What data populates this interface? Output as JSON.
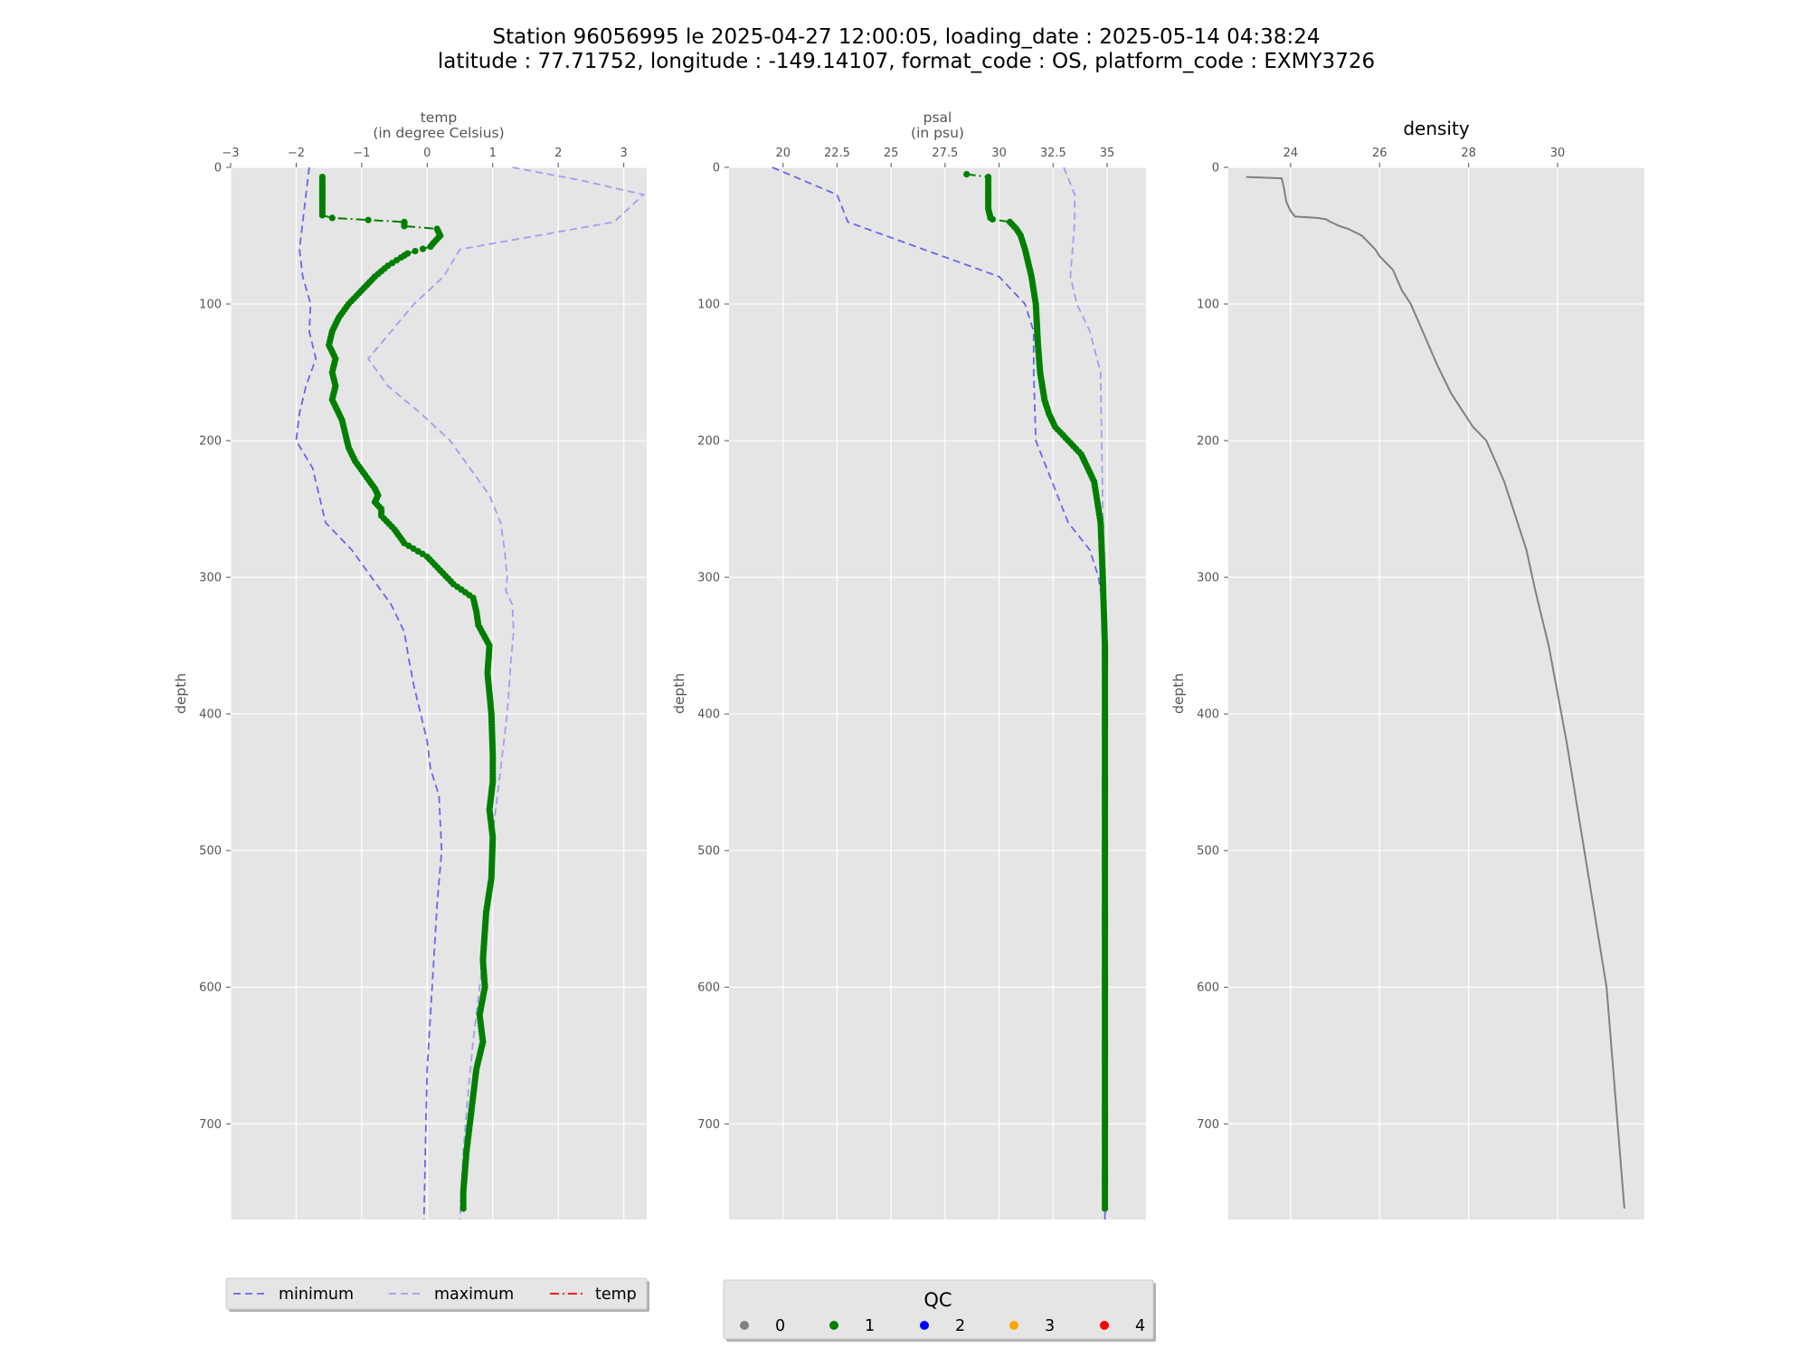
{
  "title_line1": "Station 96056995 le 2025-04-27 12:00:05, loading_date : 2025-05-14 04:38:24",
  "title_line2": "latitude : 77.71752, longitude : -149.14107, format_code : OS, platform_code : EXMY3726",
  "colors": {
    "axes_bg": "#e5e5e5",
    "grid": "#ffffff",
    "min_line": "#6666ee",
    "max_line": "#9f9fee",
    "profile": "#007f00",
    "density_line": "#808080",
    "temp_legend": "#ff0000"
  },
  "chart_data": [
    {
      "type": "line",
      "title": "temp",
      "subtitle": "(in degree Celsius)",
      "ylabel": "depth",
      "xlim": [
        -3,
        3.35
      ],
      "ylim": [
        770,
        0
      ],
      "xticks": [
        -3,
        -2,
        -1,
        0,
        1,
        2,
        3
      ],
      "yticks": [
        0,
        100,
        200,
        300,
        400,
        500,
        600,
        700
      ],
      "grid": true,
      "series": [
        {
          "name": "minimum",
          "style": "dashed",
          "x": [
            -1.8,
            -1.85,
            -1.9,
            -1.95,
            -1.9,
            -1.78,
            -1.8,
            -1.7,
            -1.85,
            -1.95,
            -2.0,
            -1.75,
            -1.55,
            -1.15,
            -0.85,
            -0.55,
            -0.35,
            -0.28,
            -0.2,
            -0.1,
            0.0,
            0.05,
            0.18,
            0.2,
            0.22,
            0.15,
            0.1,
            0.05,
            0.0,
            -0.02,
            -0.05
          ],
          "y": [
            0,
            20,
            40,
            60,
            80,
            100,
            120,
            140,
            160,
            180,
            200,
            220,
            260,
            280,
            300,
            320,
            340,
            360,
            380,
            400,
            420,
            440,
            460,
            480,
            500,
            540,
            580,
            620,
            660,
            700,
            770
          ]
        },
        {
          "name": "maximum",
          "style": "dashed",
          "x": [
            1.3,
            2.4,
            3.3,
            2.85,
            0.5,
            0.25,
            -0.2,
            -0.9,
            -0.6,
            -0.1,
            0.35,
            0.65,
            0.95,
            1.12,
            1.18,
            1.22,
            1.2,
            1.3,
            1.32,
            1.28,
            1.22,
            1.12,
            1.02,
            0.98,
            0.95,
            0.9,
            0.8,
            0.7,
            0.62,
            0.55,
            0.5
          ],
          "y": [
            0,
            10,
            20,
            40,
            60,
            80,
            100,
            140,
            160,
            180,
            200,
            220,
            240,
            260,
            280,
            300,
            310,
            320,
            340,
            360,
            400,
            440,
            480,
            500,
            520,
            560,
            600,
            640,
            680,
            720,
            770
          ]
        },
        {
          "name": "temp",
          "qc": 1,
          "style": "dashdot-markers",
          "x": [
            -1.6,
            -1.6,
            -1.6,
            -1.6,
            -1.45,
            -0.35,
            -0.35,
            0.15,
            0.2,
            0.1,
            0.05,
            -0.3,
            -0.4,
            -0.6,
            -0.8,
            -1.0,
            -1.2,
            -1.35,
            -1.45,
            -1.5,
            -1.4,
            -1.45,
            -1.4,
            -1.45,
            -1.3,
            -1.25,
            -1.2,
            -1.1,
            -0.95,
            -0.8,
            -0.75,
            -0.8,
            -0.7,
            -0.7,
            -0.5,
            -0.35,
            0.0,
            0.2,
            0.4,
            0.7,
            0.75,
            0.78,
            0.95,
            0.92,
            0.98,
            1.0,
            1.0,
            0.95,
            1.0,
            0.98,
            0.9,
            0.85,
            0.88,
            0.8,
            0.85,
            0.75,
            0.7,
            0.65,
            0.6,
            0.55,
            0.55
          ],
          "y": [
            7,
            15,
            25,
            35,
            37,
            40,
            43,
            45,
            50,
            55,
            58,
            63,
            66,
            72,
            80,
            90,
            100,
            110,
            120,
            130,
            140,
            150,
            160,
            170,
            185,
            195,
            205,
            215,
            225,
            235,
            240,
            245,
            250,
            255,
            265,
            275,
            285,
            295,
            305,
            315,
            325,
            335,
            350,
            370,
            400,
            430,
            450,
            470,
            490,
            520,
            545,
            580,
            600,
            620,
            640,
            660,
            680,
            700,
            720,
            750,
            762
          ]
        }
      ]
    },
    {
      "type": "line",
      "title": "psal",
      "subtitle": "(in psu)",
      "ylabel": "depth",
      "xlim": [
        17.5,
        36.8
      ],
      "ylim": [
        770,
        0
      ],
      "xticks": [
        20.0,
        22.5,
        25.0,
        27.5,
        30.0,
        32.5,
        35.0
      ],
      "yticks": [
        0,
        100,
        200,
        300,
        400,
        500,
        600,
        700
      ],
      "grid": true,
      "series": [
        {
          "name": "minimum",
          "style": "dashed",
          "x": [
            19.5,
            22.5,
            23.0,
            26.5,
            30.0,
            31.2,
            31.6,
            31.6,
            31.7,
            32.2,
            33.2,
            34.2,
            34.6,
            34.8,
            34.9,
            34.9,
            34.9,
            34.9,
            34.9
          ],
          "y": [
            0,
            20,
            40,
            60,
            80,
            100,
            120,
            150,
            200,
            220,
            260,
            280,
            300,
            320,
            340,
            400,
            500,
            600,
            770
          ]
        },
        {
          "name": "maximum",
          "style": "dashed",
          "x": [
            33.0,
            33.5,
            33.5,
            33.4,
            33.3,
            33.6,
            34.2,
            34.7,
            34.75,
            34.8,
            34.85,
            34.9,
            34.95,
            35.0,
            35.0,
            35.0,
            34.95,
            34.95
          ],
          "y": [
            0,
            20,
            40,
            60,
            80,
            100,
            120,
            150,
            200,
            250,
            300,
            320,
            340,
            350,
            360,
            400,
            500,
            770
          ]
        },
        {
          "name": "psal",
          "qc": 1,
          "style": "dashdot-markers",
          "x": [
            28.5,
            29.5,
            29.5,
            29.5,
            29.6,
            29.7,
            30.5,
            30.8,
            31.0,
            31.2,
            31.5,
            31.7,
            31.8,
            31.9,
            32.1,
            32.3,
            32.6,
            33.2,
            33.8,
            34.4,
            34.7,
            34.8,
            34.9,
            34.9,
            34.9,
            34.9,
            34.9,
            34.9
          ],
          "y": [
            5,
            7,
            20,
            30,
            37,
            38,
            40,
            45,
            50,
            60,
            80,
            100,
            130,
            150,
            170,
            180,
            190,
            200,
            210,
            230,
            260,
            300,
            350,
            400,
            500,
            600,
            700,
            762
          ]
        }
      ]
    },
    {
      "type": "line",
      "title": "density",
      "subtitle": "",
      "ylabel": "depth",
      "xlim": [
        22.6,
        31.95
      ],
      "ylim": [
        770,
        0
      ],
      "xticks": [
        24,
        26,
        28,
        30
      ],
      "yticks": [
        0,
        100,
        200,
        300,
        400,
        500,
        600,
        700
      ],
      "grid": true,
      "series": [
        {
          "name": "",
          "style": "solid",
          "x": [
            23.0,
            23.8,
            23.85,
            23.9,
            24.0,
            24.1,
            24.6,
            24.8,
            24.9,
            25.1,
            25.3,
            25.6,
            25.9,
            26.0,
            26.3,
            26.5,
            26.7,
            26.9,
            27.1,
            27.3,
            27.6,
            27.9,
            28.1,
            28.4,
            28.6,
            28.8,
            29.0,
            29.3,
            29.5,
            29.8,
            30.2,
            30.6,
            31.1,
            31.5
          ],
          "y": [
            7,
            8,
            15,
            25,
            32,
            36,
            37,
            38,
            40,
            43,
            45,
            50,
            60,
            65,
            75,
            90,
            100,
            115,
            130,
            145,
            165,
            180,
            190,
            200,
            215,
            230,
            250,
            280,
            310,
            350,
            420,
            500,
            600,
            762
          ]
        }
      ]
    }
  ],
  "legend_main": {
    "items": [
      {
        "label": "minimum",
        "style": "dashed",
        "color_key": "min_line"
      },
      {
        "label": "maximum",
        "style": "dashed",
        "color_key": "max_line"
      },
      {
        "label": "temp",
        "style": "dashdot",
        "color_key": "temp_legend"
      }
    ]
  },
  "legend_qc": {
    "title": "QC",
    "items": [
      {
        "label": "0",
        "color": "#808080"
      },
      {
        "label": "1",
        "color": "#008000"
      },
      {
        "label": "2",
        "color": "#0000ff"
      },
      {
        "label": "3",
        "color": "#ffa500"
      },
      {
        "label": "4",
        "color": "#ff0000"
      }
    ]
  }
}
